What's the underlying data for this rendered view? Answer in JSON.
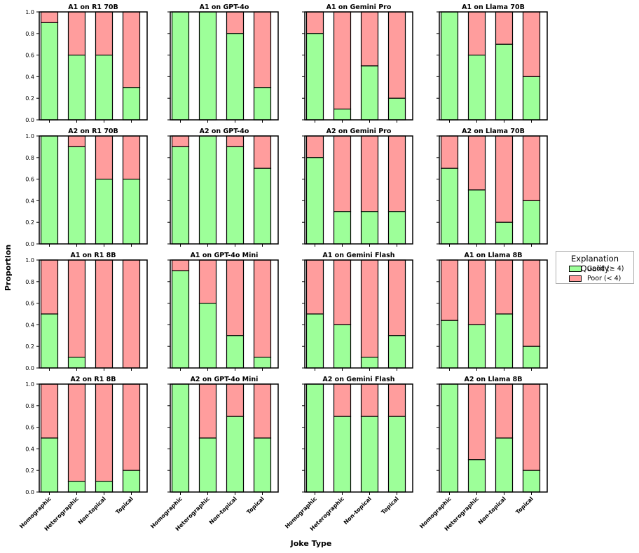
{
  "figure": {
    "ylabel": "Proportion",
    "xlabel": "Joke Type"
  },
  "legend": {
    "title": "Explanation Quality",
    "items": [
      {
        "label": "Good (≥ 4)",
        "color": "#9dff99"
      },
      {
        "label": "Poor (< 4)",
        "color": "#ff9d9d"
      }
    ]
  },
  "chart_data": {
    "type": "bar",
    "stacked": true,
    "categories": [
      "Homographic",
      "Heterographic",
      "Non-topical",
      "Topical"
    ],
    "yticks": [
      "0.0",
      "0.2",
      "0.4",
      "0.6",
      "0.8",
      "1.0"
    ],
    "ylim": [
      0,
      1
    ],
    "grid": false,
    "legend_position": "right",
    "colors": {
      "good": "#9dff99",
      "poor": "#ff9d9d"
    },
    "panels": [
      {
        "title": "A1 on R1 70B",
        "good": [
          0.9,
          0.6,
          0.6,
          0.3
        ]
      },
      {
        "title": "A1 on GPT-4o",
        "good": [
          1.0,
          1.0,
          0.8,
          0.3
        ]
      },
      {
        "title": "A1 on Gemini Pro",
        "good": [
          0.8,
          0.1,
          0.5,
          0.2
        ]
      },
      {
        "title": "A1 on Llama 70B",
        "good": [
          1.0,
          0.6,
          0.7,
          0.4
        ]
      },
      {
        "title": "A2 on R1 70B",
        "good": [
          1.0,
          0.9,
          0.6,
          0.6
        ]
      },
      {
        "title": "A2 on GPT-4o",
        "good": [
          0.9,
          1.0,
          0.9,
          0.7
        ]
      },
      {
        "title": "A2 on Gemini Pro",
        "good": [
          0.8,
          0.3,
          0.3,
          0.3
        ]
      },
      {
        "title": "A2 on Llama 70B",
        "good": [
          0.7,
          0.5,
          0.2,
          0.4
        ]
      },
      {
        "title": "A1 on R1 8B",
        "good": [
          0.5,
          0.1,
          0.0,
          0.0
        ]
      },
      {
        "title": "A1 on GPT-4o Mini",
        "good": [
          0.9,
          0.6,
          0.3,
          0.1
        ]
      },
      {
        "title": "A1 on Gemini Flash",
        "good": [
          0.5,
          0.4,
          0.1,
          0.3
        ]
      },
      {
        "title": "A1 on Llama 8B",
        "good": [
          0.44,
          0.4,
          0.5,
          0.2
        ]
      },
      {
        "title": "A2 on R1 8B",
        "good": [
          0.5,
          0.1,
          0.1,
          0.2
        ]
      },
      {
        "title": "A2 on GPT-4o Mini",
        "good": [
          1.0,
          0.5,
          0.7,
          0.5
        ]
      },
      {
        "title": "A2 on Gemini Flash",
        "good": [
          1.0,
          0.7,
          0.7,
          0.7
        ]
      },
      {
        "title": "A2 on Llama 8B",
        "good": [
          1.0,
          0.3,
          0.5,
          0.2
        ]
      }
    ]
  }
}
